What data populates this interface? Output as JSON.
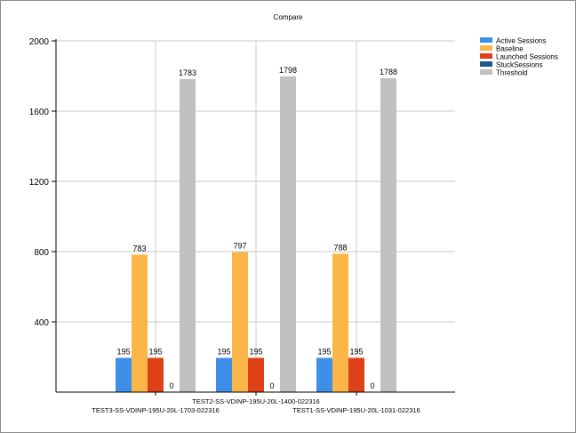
{
  "chart_data": {
    "type": "bar",
    "title": "Compare",
    "categories": [
      "TEST3-SS-VDINP-195U-20L-1703-022316",
      "TEST2-SS-VDINP-195U-20L-1400-022316",
      "TEST1-SS-VDINP-195U-20L-1031-022316"
    ],
    "series": [
      {
        "name": "Active Sessions",
        "color": "#3f8fe8",
        "values": [
          195,
          195,
          195
        ]
      },
      {
        "name": "Baseline",
        "color": "#fbb647",
        "values": [
          783,
          797,
          788
        ]
      },
      {
        "name": "Launched Sessions",
        "color": "#de4117",
        "values": [
          195,
          195,
          195
        ]
      },
      {
        "name": "StuckSessions",
        "color": "#1d5a87",
        "values": [
          0,
          0,
          0
        ]
      },
      {
        "name": "Threshold",
        "color": "#c0c0c0",
        "values": [
          1783,
          1798,
          1788
        ]
      }
    ],
    "ylim": [
      0,
      2000
    ],
    "yticks": [
      "400",
      "800",
      "1200",
      "1600",
      "2000"
    ],
    "xlabel": "",
    "ylabel": "",
    "grid": true,
    "legend_position": "top-right"
  }
}
